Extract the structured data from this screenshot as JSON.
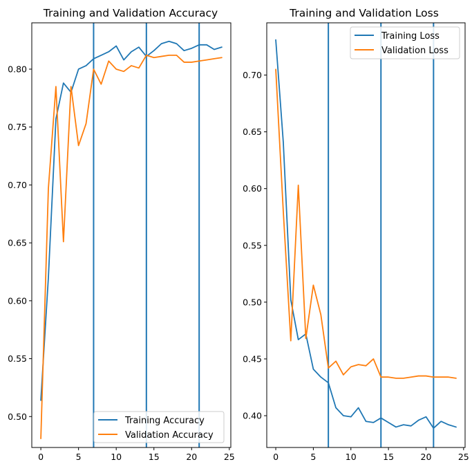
{
  "chart_data": [
    {
      "type": "line",
      "title": "Training and Validation Accuracy",
      "xlabel": "",
      "ylabel": "",
      "xlim": [
        -1.2,
        25.2
      ],
      "ylim": [
        0.4733,
        0.84
      ],
      "xticks": [
        0,
        5,
        10,
        15,
        20,
        25
      ],
      "yticks": [
        0.5,
        0.55,
        0.6,
        0.65,
        0.7,
        0.75,
        0.8
      ],
      "ytick_labels": [
        "0.50",
        "0.55",
        "0.60",
        "0.65",
        "0.70",
        "0.75",
        "0.80"
      ],
      "vlines": [
        7,
        14,
        21
      ],
      "grid": false,
      "legend_position": "lower-right",
      "series": [
        {
          "name": "Training Accuracy",
          "color": "#1f77b4",
          "x": [
            0,
            1,
            2,
            3,
            4,
            5,
            6,
            7,
            8,
            9,
            10,
            11,
            12,
            13,
            14,
            15,
            16,
            17,
            18,
            19,
            20,
            21,
            22,
            23,
            24
          ],
          "values": [
            0.514,
            0.62,
            0.757,
            0.788,
            0.78,
            0.8,
            0.803,
            0.809,
            0.812,
            0.815,
            0.82,
            0.808,
            0.815,
            0.819,
            0.811,
            0.816,
            0.822,
            0.824,
            0.822,
            0.816,
            0.818,
            0.821,
            0.821,
            0.817,
            0.819
          ]
        },
        {
          "name": "Validation Accuracy",
          "color": "#ff7f0e",
          "x": [
            0,
            1,
            2,
            3,
            4,
            5,
            6,
            7,
            8,
            9,
            10,
            11,
            12,
            13,
            14,
            15,
            16,
            17,
            18,
            19,
            20,
            21,
            22,
            23,
            24
          ],
          "values": [
            0.481,
            0.697,
            0.785,
            0.651,
            0.785,
            0.734,
            0.753,
            0.8,
            0.787,
            0.807,
            0.8,
            0.798,
            0.803,
            0.801,
            0.812,
            0.81,
            0.811,
            0.812,
            0.812,
            0.806,
            0.806,
            0.807,
            0.808,
            0.809,
            0.81
          ]
        }
      ]
    },
    {
      "type": "line",
      "title": "Training and Validation Loss",
      "xlabel": "",
      "ylabel": "",
      "xlim": [
        -1.2,
        25.2
      ],
      "ylim": [
        0.372,
        0.746
      ],
      "xticks": [
        0,
        5,
        10,
        15,
        20,
        25
      ],
      "yticks": [
        0.4,
        0.45,
        0.5,
        0.55,
        0.6,
        0.65,
        0.7
      ],
      "ytick_labels": [
        "0.40",
        "0.45",
        "0.50",
        "0.55",
        "0.60",
        "0.65",
        "0.70"
      ],
      "vlines": [
        7,
        14,
        21
      ],
      "grid": false,
      "legend_position": "upper-right",
      "series": [
        {
          "name": "Training Loss",
          "color": "#1f77b4",
          "x": [
            0,
            1,
            2,
            3,
            4,
            5,
            6,
            7,
            8,
            9,
            10,
            11,
            12,
            13,
            14,
            15,
            16,
            17,
            18,
            19,
            20,
            21,
            22,
            23,
            24
          ],
          "values": [
            0.731,
            0.641,
            0.502,
            0.467,
            0.472,
            0.441,
            0.434,
            0.429,
            0.407,
            0.4,
            0.399,
            0.407,
            0.395,
            0.394,
            0.398,
            0.394,
            0.39,
            0.392,
            0.391,
            0.396,
            0.399,
            0.389,
            0.395,
            0.392,
            0.39
          ]
        },
        {
          "name": "Validation Loss",
          "color": "#ff7f0e",
          "x": [
            0,
            1,
            2,
            3,
            4,
            5,
            6,
            7,
            8,
            9,
            10,
            11,
            12,
            13,
            14,
            15,
            16,
            17,
            18,
            19,
            20,
            21,
            22,
            23,
            24
          ],
          "values": [
            0.705,
            0.58,
            0.466,
            0.603,
            0.468,
            0.515,
            0.489,
            0.442,
            0.448,
            0.436,
            0.443,
            0.445,
            0.444,
            0.45,
            0.434,
            0.434,
            0.433,
            0.433,
            0.434,
            0.435,
            0.435,
            0.434,
            0.434,
            0.434,
            0.433
          ]
        }
      ]
    }
  ]
}
